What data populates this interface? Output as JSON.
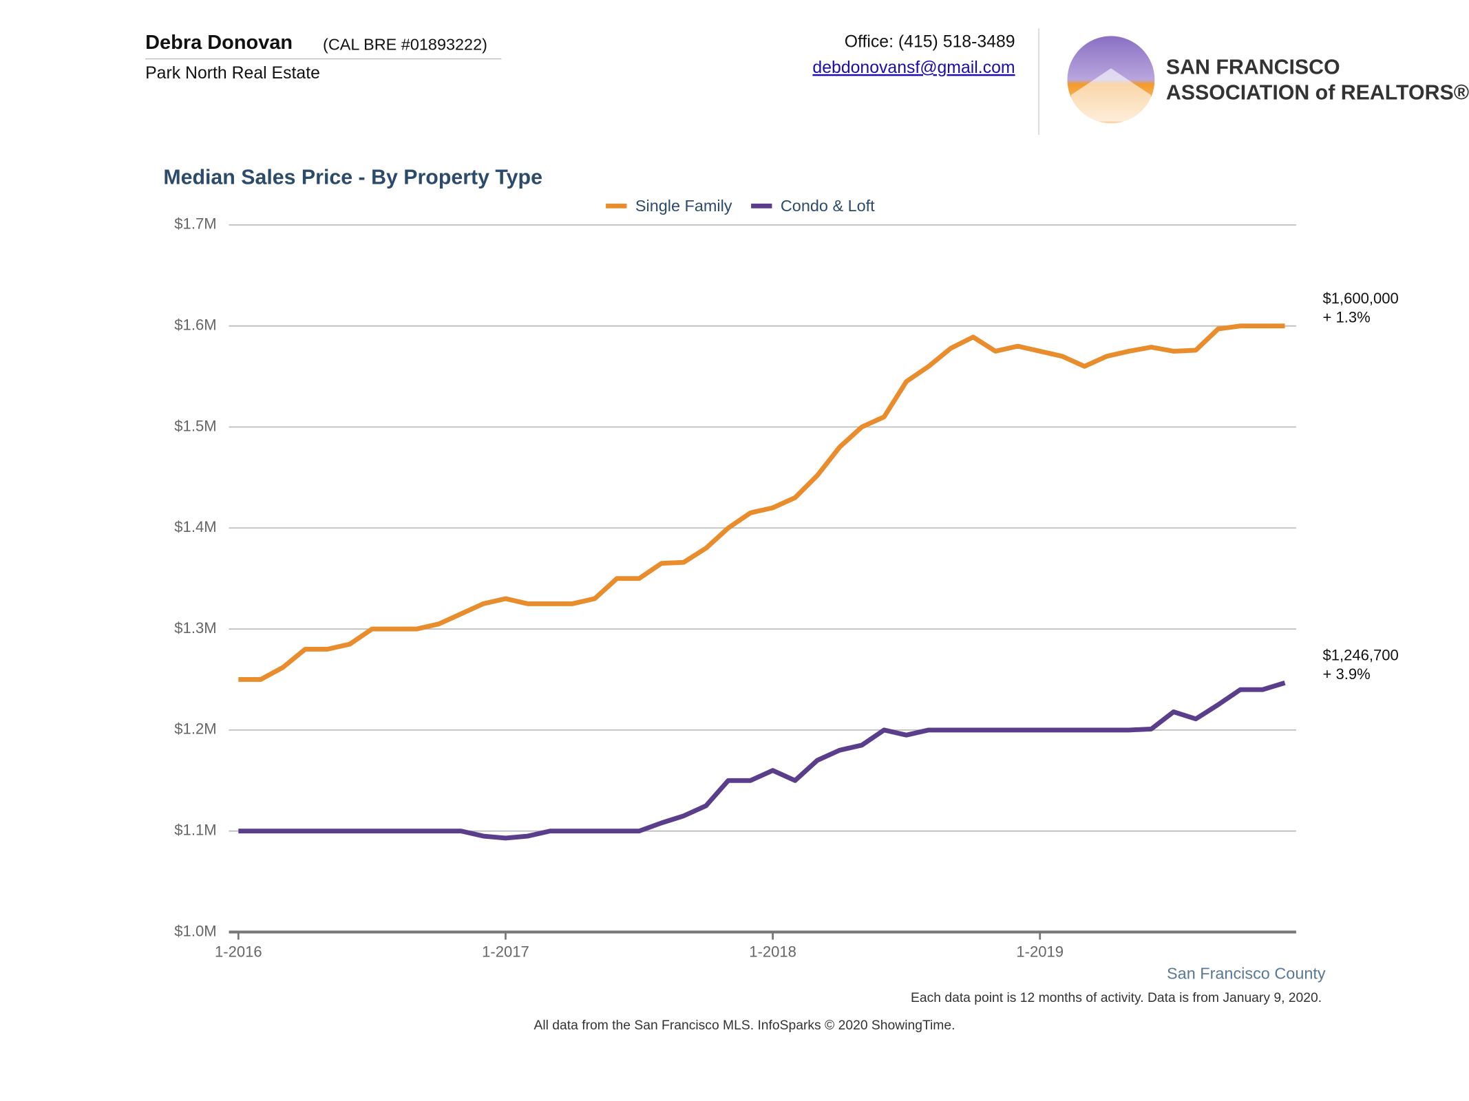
{
  "header": {
    "agent_name": "Debra Donovan",
    "license": "(CAL BRE #01893222)",
    "company": "Park North Real Estate",
    "phone": "Office: (415) 518-3489",
    "email": "debdonovansf@gmail.com",
    "logo_line1": "SAN FRANCISCO",
    "logo_line2": "ASSOCIATION of REALTORS®"
  },
  "chart_data": {
    "type": "line",
    "title": "Median Sales Price - By Property Type",
    "categories": [
      "1-2016",
      null,
      null,
      null,
      null,
      null,
      null,
      null,
      null,
      null,
      null,
      null,
      "1-2017",
      null,
      null,
      null,
      null,
      null,
      null,
      null,
      null,
      null,
      null,
      null,
      "1-2018",
      null,
      null,
      null,
      null,
      null,
      null,
      null,
      null,
      null,
      null,
      null,
      "1-2019",
      null,
      null,
      null,
      null,
      null,
      null,
      null,
      null,
      null,
      null,
      null
    ],
    "series": [
      {
        "name": "Single Family",
        "color": "#e98c2c",
        "end_label": "$1,600,000",
        "change_label": "+ 1.3%",
        "values": [
          1250000,
          1250000,
          1262000,
          1280000,
          1280000,
          1285000,
          1300000,
          1300000,
          1300000,
          1305000,
          1315000,
          1325000,
          1330000,
          1325000,
          1325000,
          1325000,
          1330000,
          1350000,
          1350000,
          1365000,
          1366000,
          1380000,
          1400000,
          1415000,
          1420000,
          1430000,
          1452000,
          1480000,
          1500000,
          1510000,
          1545000,
          1560000,
          1578000,
          1589000,
          1575000,
          1580000,
          1575000,
          1570000,
          1560000,
          1570000,
          1575000,
          1579000,
          1575000,
          1576000,
          1597000,
          1600000,
          1600000,
          1600000
        ]
      },
      {
        "name": "Condo & Loft",
        "color": "#5a3e8c",
        "end_label": "$1,246,700",
        "change_label": "+ 3.9%",
        "values": [
          1100000,
          1100000,
          1100000,
          1100000,
          1100000,
          1100000,
          1100000,
          1100000,
          1100000,
          1100000,
          1100000,
          1095000,
          1093000,
          1095000,
          1100000,
          1100000,
          1100000,
          1100000,
          1100000,
          1108000,
          1115000,
          1125000,
          1150000,
          1150000,
          1160000,
          1150000,
          1170000,
          1180000,
          1185000,
          1200000,
          1195000,
          1200000,
          1200000,
          1200000,
          1200000,
          1200000,
          1200000,
          1200000,
          1200000,
          1200000,
          1200000,
          1201000,
          1218000,
          1211000,
          1225000,
          1240000,
          1240000,
          1246700
        ]
      }
    ],
    "ylim": [
      1000000,
      1700000
    ],
    "yticks": [
      {
        "value": 1000000,
        "label": "$1.0M"
      },
      {
        "value": 1100000,
        "label": "$1.1M"
      },
      {
        "value": 1200000,
        "label": "$1.2M"
      },
      {
        "value": 1300000,
        "label": "$1.3M"
      },
      {
        "value": 1400000,
        "label": "$1.4M"
      },
      {
        "value": 1500000,
        "label": "$1.5M"
      },
      {
        "value": 1600000,
        "label": "$1.6M"
      },
      {
        "value": 1700000,
        "label": "$1.7M"
      }
    ],
    "grid": true,
    "legend": "top"
  },
  "footer": {
    "region": "San Francisco County",
    "note": "Each data point is 12 months of activity. Data is from January 9, 2020.",
    "source": "All data from the San Francisco MLS. InfoSparks © 2020 ShowingTime."
  }
}
